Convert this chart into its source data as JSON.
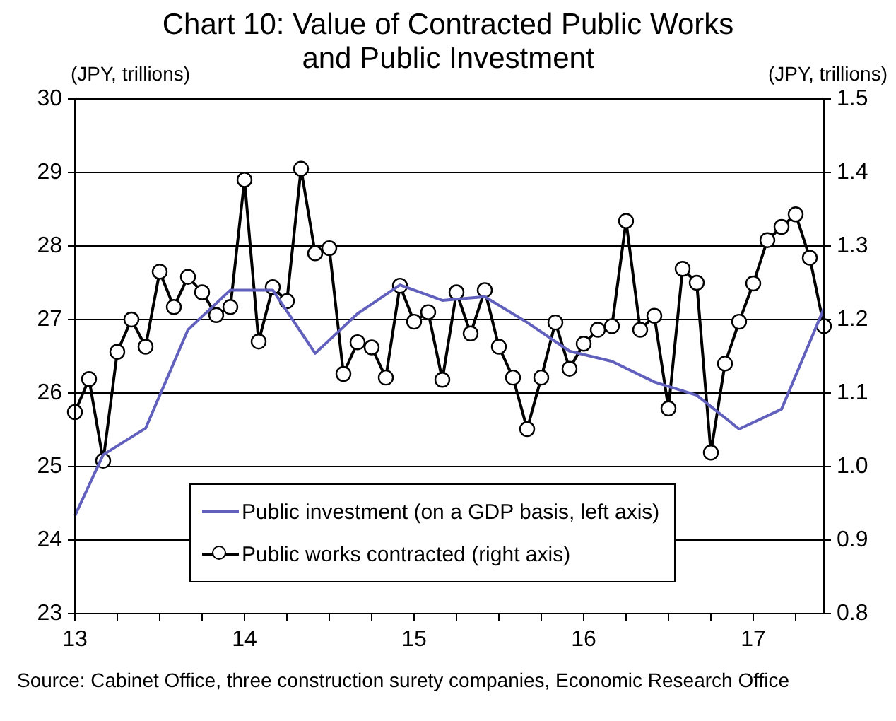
{
  "chart_data": {
    "type": "line",
    "title": "Chart 10: Value of Contracted Public Works\nand Public Investment",
    "ylabel": "(JPY, trillions)",
    "y2label": "(JPY, trillions)",
    "xlim": [
      "2013-01",
      "2017-06"
    ],
    "xticks": [
      {
        "value": "2013-01",
        "label": "13"
      },
      {
        "value": "2013-04",
        "label": null
      },
      {
        "value": "2013-07",
        "label": null
      },
      {
        "value": "2013-10",
        "label": null
      },
      {
        "value": "2014-01",
        "label": "14"
      },
      {
        "value": "2014-04",
        "label": null
      },
      {
        "value": "2014-07",
        "label": null
      },
      {
        "value": "2014-10",
        "label": null
      },
      {
        "value": "2015-01",
        "label": "15"
      },
      {
        "value": "2015-04",
        "label": null
      },
      {
        "value": "2015-07",
        "label": null
      },
      {
        "value": "2015-10",
        "label": null
      },
      {
        "value": "2016-01",
        "label": "16"
      },
      {
        "value": "2016-04",
        "label": null
      },
      {
        "value": "2016-07",
        "label": null
      },
      {
        "value": "2016-10",
        "label": null
      },
      {
        "value": "2017-01",
        "label": "17"
      },
      {
        "value": "2017-04",
        "label": null
      }
    ],
    "ylim": [
      23,
      30
    ],
    "yticks": [
      23,
      24,
      25,
      26,
      27,
      28,
      29,
      30
    ],
    "y2lim": [
      0.8,
      1.5
    ],
    "y2ticks": [
      0.8,
      0.9,
      {
        "value": 1,
        "label": "1.0"
      },
      1.1,
      1.2,
      1.3,
      1.4,
      1.5
    ],
    "grid": "y",
    "legend": "bottom",
    "line_style": "solid",
    "series": [
      {
        "name": "Public investment (on a GDP basis, left axis)",
        "color": "#6161bd",
        "marker": "none",
        "x": [
          "2013-01",
          "2013-03",
          "2013-06",
          "2013-09",
          "2013-12",
          "2014-03",
          "2014-06",
          "2014-09",
          "2014-12",
          "2015-03",
          "2015-06",
          "2015-09",
          "2015-12",
          "2016-03",
          "2016-06",
          "2016-09",
          "2016-12",
          "2017-03",
          "2017-06"
        ],
        "values": [
          24.33,
          25.16,
          25.52,
          26.86,
          27.4,
          27.4,
          26.54,
          27.08,
          27.47,
          27.26,
          27.31,
          26.96,
          26.57,
          26.43,
          26.15,
          25.97,
          25.51,
          25.78,
          27.15
        ]
      },
      {
        "name": "Public works contracted (right axis)",
        "color": "#000000",
        "marker": "circle",
        "axis": "y2",
        "x": [
          "2013-01",
          "2013-02",
          "2013-03",
          "2013-04",
          "2013-05",
          "2013-06",
          "2013-07",
          "2013-08",
          "2013-09",
          "2013-10",
          "2013-11",
          "2013-12",
          "2014-01",
          "2014-02",
          "2014-03",
          "2014-04",
          "2014-05",
          "2014-06",
          "2014-07",
          "2014-08",
          "2014-09",
          "2014-10",
          "2014-11",
          "2014-12",
          "2015-01",
          "2015-02",
          "2015-03",
          "2015-04",
          "2015-05",
          "2015-06",
          "2015-07",
          "2015-08",
          "2015-09",
          "2015-10",
          "2015-11",
          "2015-12",
          "2016-01",
          "2016-02",
          "2016-03",
          "2016-04",
          "2016-05",
          "2016-06",
          "2016-07",
          "2016-08",
          "2016-09",
          "2016-10",
          "2016-11",
          "2016-12",
          "2017-01",
          "2017-02",
          "2017-03",
          "2017-04",
          "2017-05",
          "2017-06"
        ],
        "values": [
          1.074,
          1.119,
          1.008,
          1.156,
          1.2,
          1.163,
          1.265,
          1.217,
          1.258,
          1.237,
          1.206,
          1.217,
          1.39,
          1.17,
          1.244,
          1.225,
          1.405,
          1.29,
          1.297,
          1.126,
          1.169,
          1.162,
          1.121,
          1.246,
          1.197,
          1.21,
          1.118,
          1.237,
          1.181,
          1.24,
          1.163,
          1.121,
          1.051,
          1.121,
          1.196,
          1.133,
          1.167,
          1.186,
          1.191,
          1.334,
          1.186,
          1.205,
          1.079,
          1.269,
          1.25,
          1.019,
          1.14,
          1.197,
          1.249,
          1.308,
          1.326,
          1.343,
          1.284,
          1.191
        ]
      }
    ],
    "annotations": [
      "Source: Cabinet Office, three construction surety companies, Economic Research Office"
    ]
  }
}
